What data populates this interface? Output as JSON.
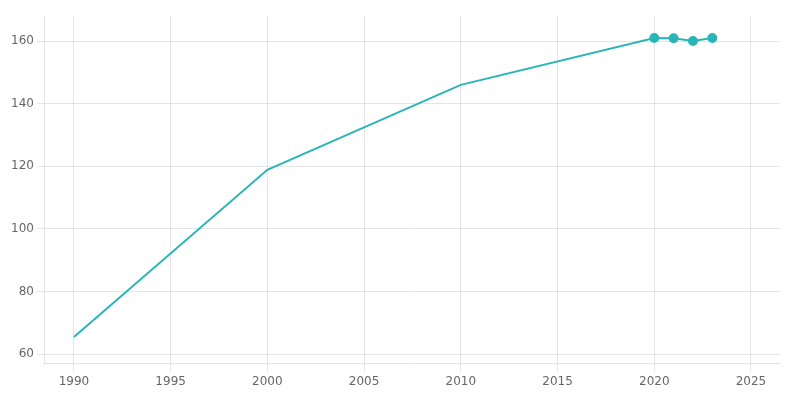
{
  "chart_data": {
    "type": "line",
    "x": [
      1990,
      2000,
      2010,
      2020,
      2021,
      2022,
      2023
    ],
    "series": [
      {
        "color": "#2ab5b8",
        "marker": "none",
        "line_style": "solid",
        "values": [
          65.5,
          118.9,
          146.0,
          161.0,
          160.9,
          160.0,
          161.0
        ]
      },
      {
        "color": "#2ab5b8",
        "marker": "circle",
        "line_style": "none",
        "values": [
          null,
          null,
          null,
          161.0,
          160.9,
          160.0,
          161.0
        ]
      }
    ],
    "xlim": [
      1988.5,
      2026.5
    ],
    "ylim": [
      57,
      168
    ],
    "xticks": [
      1990,
      1995,
      2000,
      2005,
      2010,
      2015,
      2020,
      2025
    ],
    "yticks": [
      60,
      80,
      100,
      120,
      140,
      160
    ],
    "grid": true
  }
}
